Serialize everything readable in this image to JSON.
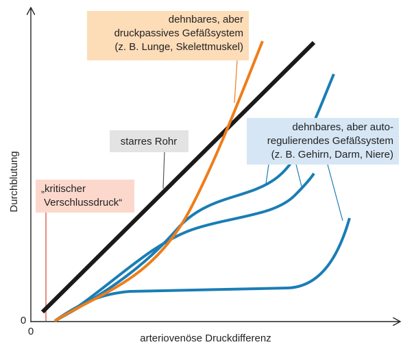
{
  "axes": {
    "y_label": "Durchblutung",
    "x_label": "arteriovenöse Druckdifferenz",
    "y_origin": "0",
    "x_origin": "0"
  },
  "callouts": {
    "passive": [
      "dehnbares, aber",
      "druckpassives Gefäßsystem",
      "(z. B. Lunge, Skelettmuskel)"
    ],
    "rigid": [
      "starres Rohr"
    ],
    "critical": [
      "„kritischer",
      "Verschlussdruck“"
    ],
    "autoregulating": [
      "dehnbares, aber auto-",
      "regulierendes Gefäßsystem",
      "(z. B. Gehirn, Darm, Niere)"
    ]
  }
}
